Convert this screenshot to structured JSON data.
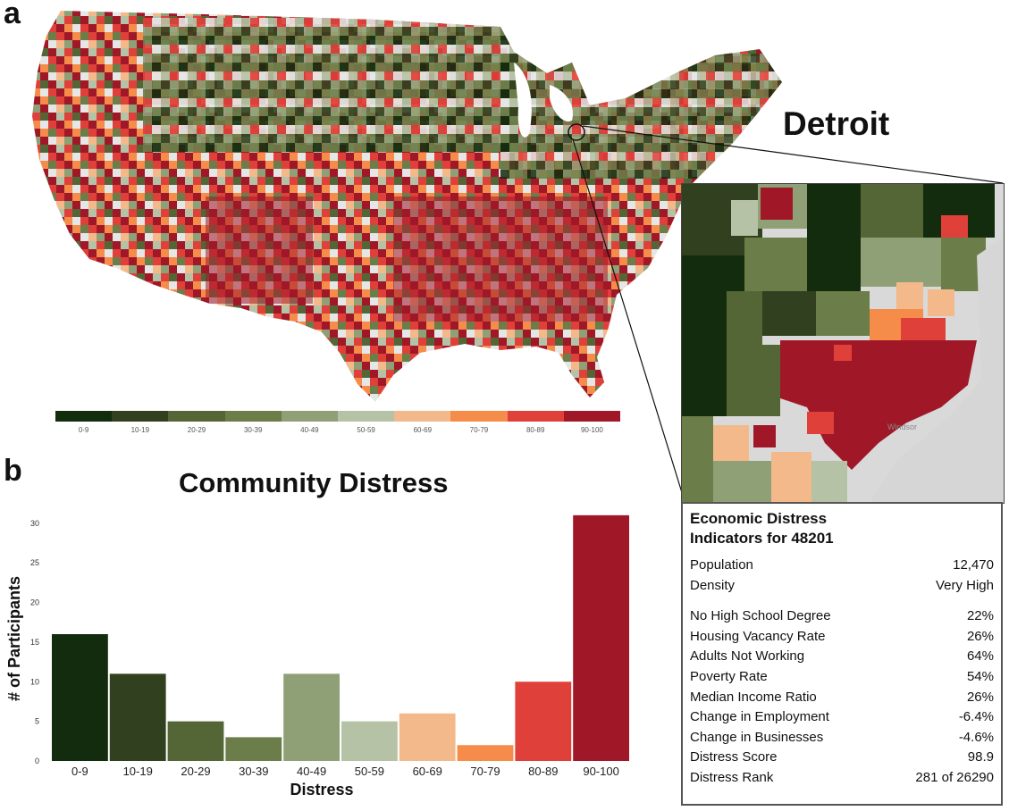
{
  "panels": {
    "a": "a",
    "b": "b"
  },
  "map": {
    "city_label": "Detroit",
    "legend": [
      {
        "label": "0-9",
        "color": "#142c0e"
      },
      {
        "label": "10-19",
        "color": "#31401f"
      },
      {
        "label": "20-29",
        "color": "#556636"
      },
      {
        "label": "30-39",
        "color": "#6b7d48"
      },
      {
        "label": "40-49",
        "color": "#8fa077"
      },
      {
        "label": "50-59",
        "color": "#b6c2a6"
      },
      {
        "label": "60-69",
        "color": "#f3b98a"
      },
      {
        "label": "70-79",
        "color": "#f58c4a"
      },
      {
        "label": "80-89",
        "color": "#e0403a"
      },
      {
        "label": "90-100",
        "color": "#a01828"
      }
    ]
  },
  "info_box": {
    "title_line1": "Economic Distress",
    "title_line2": "Indicators for 48201",
    "group1": [
      {
        "label": "Population",
        "value": "12,470"
      },
      {
        "label": "Density",
        "value": "Very High"
      }
    ],
    "group2": [
      {
        "label": "No High School Degree",
        "value": "22%"
      },
      {
        "label": "Housing Vacancy Rate",
        "value": "26%"
      },
      {
        "label": "Adults Not Working",
        "value": "64%"
      },
      {
        "label": "Poverty Rate",
        "value": "54%"
      },
      {
        "label": "Median Income Ratio",
        "value": "26%"
      },
      {
        "label": "Change in Employment",
        "value": "-6.4%"
      },
      {
        "label": "Change in Businesses",
        "value": "-4.6%"
      },
      {
        "label": "Distress Score",
        "value": "98.9"
      },
      {
        "label": "Distress Rank",
        "value": "281 of 26290"
      }
    ]
  },
  "chart_data": {
    "type": "bar",
    "title": "Community Distress",
    "xlabel": "Distress",
    "ylabel": "# of Participants",
    "categories": [
      "0-9",
      "10-19",
      "20-29",
      "30-39",
      "40-49",
      "50-59",
      "60-69",
      "70-79",
      "80-89",
      "90-100"
    ],
    "values": [
      16,
      11,
      5,
      3,
      11,
      5,
      6,
      2,
      10,
      31
    ],
    "colors": [
      "#142c0e",
      "#31401f",
      "#556636",
      "#6b7d48",
      "#8fa077",
      "#b6c2a6",
      "#f3b98a",
      "#f58c4a",
      "#e0403a",
      "#a01828"
    ],
    "ylim": [
      0,
      32
    ],
    "yticks": [
      0,
      5,
      10,
      15,
      20,
      25,
      30
    ],
    "grid": false
  }
}
